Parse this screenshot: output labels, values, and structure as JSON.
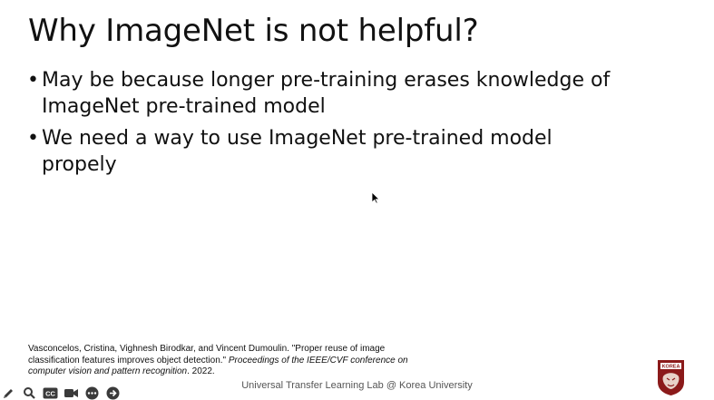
{
  "slide": {
    "title": "Why ImageNet is not helpful?",
    "bullets": [
      {
        "marker": "•",
        "text": "May be because longer pre-training erases knowledge of ImageNet pre-trained model"
      },
      {
        "marker": "•",
        "text": "We need a way to use ImageNet pre-trained model propely"
      }
    ],
    "citation": {
      "authors": "Vasconcelos, Cristina, Vighnesh Birodkar, and Vincent Dumoulin. \"Proper reuse of image classification features improves object detection.\" ",
      "venue": "Proceedings of the IEEE/CVF conference on computer vision and pattern recognition",
      "year": ". 2022."
    },
    "footer": "Universal Transfer Learning Lab @ Korea University",
    "logo_text": "KOREA"
  },
  "toolbar": {
    "items": [
      {
        "icon": "pen-icon"
      },
      {
        "icon": "search-icon"
      },
      {
        "icon": "closed-caption-icon",
        "label": "CC"
      },
      {
        "icon": "video-camera-icon"
      },
      {
        "icon": "more-icon"
      },
      {
        "icon": "next-arrow-icon"
      }
    ]
  },
  "colors": {
    "logo": "#8b1a1a",
    "toolbar_icon": "#3a3a3a"
  }
}
